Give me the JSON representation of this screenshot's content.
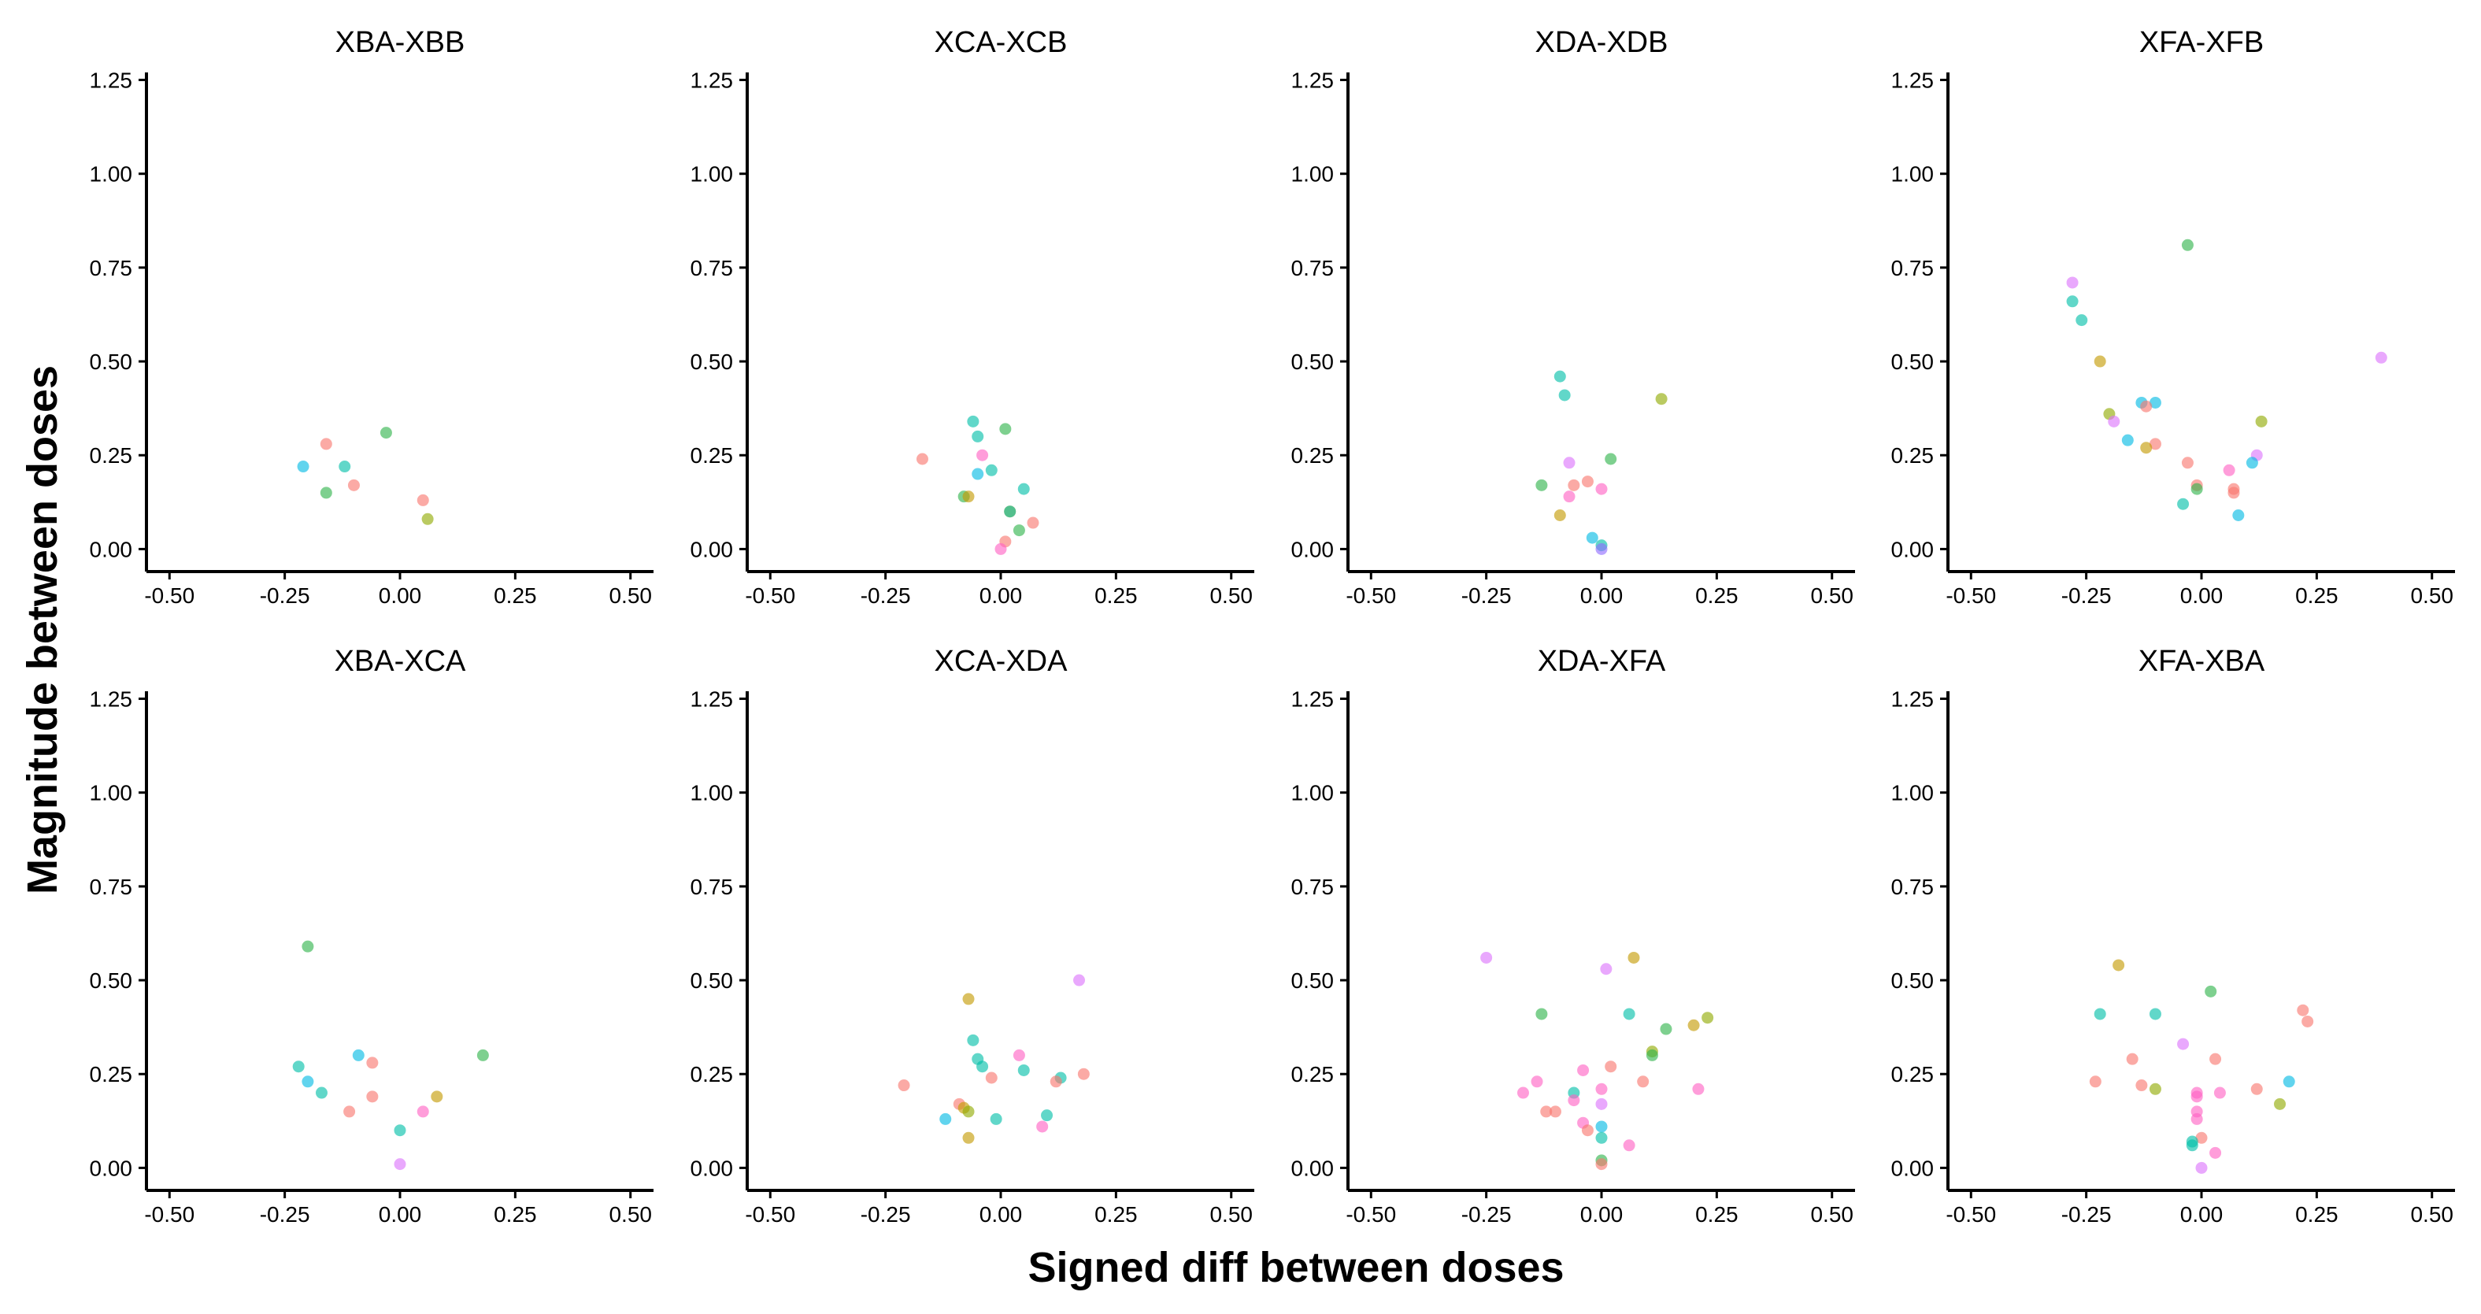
{
  "chart_data": {
    "type": "scatter",
    "xlabel": "Signed diff between doses",
    "ylabel": "Magnitude between doses",
    "xlim": [
      -0.55,
      0.55
    ],
    "ylim": [
      -0.06,
      1.27
    ],
    "x_ticks": [
      "-0.50",
      "-0.25",
      "0.00",
      "0.25",
      "0.50"
    ],
    "y_ticks": [
      "0.00",
      "0.25",
      "0.50",
      "0.75",
      "1.00",
      "1.25"
    ],
    "layout": "2 rows x 4 columns facets",
    "palette": {
      "salmon": "#F8766D",
      "mustard": "#C49A00",
      "olive": "#8FAA00",
      "green": "#2EB34A",
      "teal": "#00BFA8",
      "cyan": "#00B9E3",
      "blue": "#619CFF",
      "purple": "#8F6BFF",
      "violet": "#DB72FB",
      "pink": "#FF61C3"
    },
    "panels": [
      {
        "title": "XBA-XBB",
        "points": [
          {
            "x": -0.16,
            "y": 0.28,
            "c": "#F8766D"
          },
          {
            "x": -0.03,
            "y": 0.31,
            "c": "#2EB34A"
          },
          {
            "x": -0.21,
            "y": 0.22,
            "c": "#00B9E3"
          },
          {
            "x": -0.12,
            "y": 0.22,
            "c": "#00BFA8"
          },
          {
            "x": -0.1,
            "y": 0.17,
            "c": "#F8766D"
          },
          {
            "x": -0.16,
            "y": 0.15,
            "c": "#2EB34A"
          },
          {
            "x": 0.05,
            "y": 0.13,
            "c": "#F8766D"
          },
          {
            "x": 0.06,
            "y": 0.08,
            "c": "#8FAA00"
          }
        ]
      },
      {
        "title": "XCA-XCB",
        "points": [
          {
            "x": -0.06,
            "y": 0.34,
            "c": "#00BFA8"
          },
          {
            "x": 0.01,
            "y": 0.32,
            "c": "#2EB34A"
          },
          {
            "x": -0.05,
            "y": 0.3,
            "c": "#00BFA8"
          },
          {
            "x": -0.04,
            "y": 0.25,
            "c": "#FF61C3"
          },
          {
            "x": -0.17,
            "y": 0.24,
            "c": "#F8766D"
          },
          {
            "x": -0.02,
            "y": 0.21,
            "c": "#00BFA8"
          },
          {
            "x": -0.05,
            "y": 0.2,
            "c": "#00B9E3"
          },
          {
            "x": 0.05,
            "y": 0.16,
            "c": "#00BFA8"
          },
          {
            "x": -0.08,
            "y": 0.14,
            "c": "#2EB34A"
          },
          {
            "x": -0.07,
            "y": 0.14,
            "c": "#C49A00"
          },
          {
            "x": 0.02,
            "y": 0.1,
            "c": "#C49A00"
          },
          {
            "x": 0.02,
            "y": 0.1,
            "c": "#00BFA8"
          },
          {
            "x": 0.07,
            "y": 0.07,
            "c": "#F8766D"
          },
          {
            "x": 0.04,
            "y": 0.05,
            "c": "#2EB34A"
          },
          {
            "x": 0.01,
            "y": 0.02,
            "c": "#F8766D"
          },
          {
            "x": 0.0,
            "y": 0.0,
            "c": "#FF61C3"
          }
        ]
      },
      {
        "title": "XDA-XDB",
        "points": [
          {
            "x": -0.09,
            "y": 0.46,
            "c": "#00BFA8"
          },
          {
            "x": -0.08,
            "y": 0.41,
            "c": "#00BFA8"
          },
          {
            "x": 0.13,
            "y": 0.4,
            "c": "#8FAA00"
          },
          {
            "x": 0.02,
            "y": 0.24,
            "c": "#2EB34A"
          },
          {
            "x": -0.07,
            "y": 0.23,
            "c": "#DB72FB"
          },
          {
            "x": -0.03,
            "y": 0.18,
            "c": "#F8766D"
          },
          {
            "x": -0.06,
            "y": 0.17,
            "c": "#F8766D"
          },
          {
            "x": -0.13,
            "y": 0.17,
            "c": "#2EB34A"
          },
          {
            "x": 0.0,
            "y": 0.16,
            "c": "#FF61C3"
          },
          {
            "x": -0.07,
            "y": 0.14,
            "c": "#FF61C3"
          },
          {
            "x": -0.09,
            "y": 0.09,
            "c": "#C49A00"
          },
          {
            "x": -0.02,
            "y": 0.03,
            "c": "#00B9E3"
          },
          {
            "x": 0.0,
            "y": 0.01,
            "c": "#00BFA8"
          },
          {
            "x": 0.0,
            "y": 0.0,
            "c": "#8F6BFF"
          }
        ]
      },
      {
        "title": "XFA-XFB",
        "points": [
          {
            "x": -0.03,
            "y": 0.81,
            "c": "#2EB34A"
          },
          {
            "x": -0.28,
            "y": 0.71,
            "c": "#DB72FB"
          },
          {
            "x": -0.28,
            "y": 0.66,
            "c": "#00BFA8"
          },
          {
            "x": -0.26,
            "y": 0.61,
            "c": "#00BFA8"
          },
          {
            "x": 0.39,
            "y": 0.51,
            "c": "#DB72FB"
          },
          {
            "x": -0.22,
            "y": 0.5,
            "c": "#C49A00"
          },
          {
            "x": -0.13,
            "y": 0.39,
            "c": "#00B9E3"
          },
          {
            "x": -0.1,
            "y": 0.39,
            "c": "#00B9E3"
          },
          {
            "x": -0.12,
            "y": 0.38,
            "c": "#F8766D"
          },
          {
            "x": -0.2,
            "y": 0.36,
            "c": "#8FAA00"
          },
          {
            "x": -0.19,
            "y": 0.34,
            "c": "#DB72FB"
          },
          {
            "x": 0.13,
            "y": 0.34,
            "c": "#8FAA00"
          },
          {
            "x": -0.16,
            "y": 0.29,
            "c": "#00B9E3"
          },
          {
            "x": -0.1,
            "y": 0.28,
            "c": "#F8766D"
          },
          {
            "x": -0.12,
            "y": 0.27,
            "c": "#C49A00"
          },
          {
            "x": 0.12,
            "y": 0.25,
            "c": "#DB72FB"
          },
          {
            "x": 0.11,
            "y": 0.23,
            "c": "#00B9E3"
          },
          {
            "x": -0.03,
            "y": 0.23,
            "c": "#F8766D"
          },
          {
            "x": 0.06,
            "y": 0.21,
            "c": "#FF61C3"
          },
          {
            "x": -0.01,
            "y": 0.17,
            "c": "#F8766D"
          },
          {
            "x": -0.01,
            "y": 0.16,
            "c": "#2EB34A"
          },
          {
            "x": 0.07,
            "y": 0.16,
            "c": "#F8766D"
          },
          {
            "x": 0.07,
            "y": 0.15,
            "c": "#F8766D"
          },
          {
            "x": -0.04,
            "y": 0.12,
            "c": "#00BFA8"
          },
          {
            "x": 0.08,
            "y": 0.09,
            "c": "#00B9E3"
          }
        ]
      },
      {
        "title": "XBA-XCA",
        "points": [
          {
            "x": -0.2,
            "y": 0.59,
            "c": "#2EB34A"
          },
          {
            "x": -0.09,
            "y": 0.3,
            "c": "#00B9E3"
          },
          {
            "x": 0.18,
            "y": 0.3,
            "c": "#2EB34A"
          },
          {
            "x": -0.06,
            "y": 0.28,
            "c": "#F8766D"
          },
          {
            "x": -0.22,
            "y": 0.27,
            "c": "#00BFA8"
          },
          {
            "x": -0.2,
            "y": 0.23,
            "c": "#00B9E3"
          },
          {
            "x": -0.17,
            "y": 0.2,
            "c": "#00BFA8"
          },
          {
            "x": -0.06,
            "y": 0.19,
            "c": "#F8766D"
          },
          {
            "x": 0.08,
            "y": 0.19,
            "c": "#C49A00"
          },
          {
            "x": -0.11,
            "y": 0.15,
            "c": "#F8766D"
          },
          {
            "x": 0.05,
            "y": 0.15,
            "c": "#FF61C3"
          },
          {
            "x": 0.0,
            "y": 0.1,
            "c": "#00BFA8"
          },
          {
            "x": 0.0,
            "y": 0.01,
            "c": "#DB72FB"
          }
        ]
      },
      {
        "title": "XCA-XDA",
        "points": [
          {
            "x": 0.17,
            "y": 0.5,
            "c": "#DB72FB"
          },
          {
            "x": -0.07,
            "y": 0.45,
            "c": "#C49A00"
          },
          {
            "x": -0.06,
            "y": 0.34,
            "c": "#00BFA8"
          },
          {
            "x": -0.05,
            "y": 0.29,
            "c": "#00BFA8"
          },
          {
            "x": 0.04,
            "y": 0.3,
            "c": "#FF61C3"
          },
          {
            "x": -0.04,
            "y": 0.27,
            "c": "#00BFA8"
          },
          {
            "x": 0.05,
            "y": 0.26,
            "c": "#00BFA8"
          },
          {
            "x": 0.18,
            "y": 0.25,
            "c": "#F8766D"
          },
          {
            "x": 0.13,
            "y": 0.24,
            "c": "#00BFA8"
          },
          {
            "x": 0.12,
            "y": 0.23,
            "c": "#F8766D"
          },
          {
            "x": -0.02,
            "y": 0.24,
            "c": "#F8766D"
          },
          {
            "x": -0.21,
            "y": 0.22,
            "c": "#F8766D"
          },
          {
            "x": -0.09,
            "y": 0.17,
            "c": "#F8766D"
          },
          {
            "x": -0.08,
            "y": 0.16,
            "c": "#C49A00"
          },
          {
            "x": -0.07,
            "y": 0.15,
            "c": "#8FAA00"
          },
          {
            "x": -0.12,
            "y": 0.13,
            "c": "#00B9E3"
          },
          {
            "x": -0.01,
            "y": 0.13,
            "c": "#00BFA8"
          },
          {
            "x": 0.1,
            "y": 0.14,
            "c": "#00BFA8"
          },
          {
            "x": 0.09,
            "y": 0.11,
            "c": "#FF61C3"
          },
          {
            "x": -0.07,
            "y": 0.08,
            "c": "#C49A00"
          }
        ]
      },
      {
        "title": "XDA-XFA",
        "points": [
          {
            "x": -0.25,
            "y": 0.56,
            "c": "#DB72FB"
          },
          {
            "x": 0.07,
            "y": 0.56,
            "c": "#C49A00"
          },
          {
            "x": 0.01,
            "y": 0.53,
            "c": "#DB72FB"
          },
          {
            "x": -0.13,
            "y": 0.41,
            "c": "#2EB34A"
          },
          {
            "x": 0.06,
            "y": 0.41,
            "c": "#00BFA8"
          },
          {
            "x": 0.23,
            "y": 0.4,
            "c": "#8FAA00"
          },
          {
            "x": 0.2,
            "y": 0.38,
            "c": "#C49A00"
          },
          {
            "x": 0.14,
            "y": 0.37,
            "c": "#2EB34A"
          },
          {
            "x": 0.11,
            "y": 0.31,
            "c": "#8FAA00"
          },
          {
            "x": 0.11,
            "y": 0.3,
            "c": "#2EB34A"
          },
          {
            "x": 0.02,
            "y": 0.27,
            "c": "#F8766D"
          },
          {
            "x": -0.04,
            "y": 0.26,
            "c": "#FF61C3"
          },
          {
            "x": -0.14,
            "y": 0.23,
            "c": "#FF61C3"
          },
          {
            "x": 0.09,
            "y": 0.23,
            "c": "#F8766D"
          },
          {
            "x": 0.21,
            "y": 0.21,
            "c": "#FF61C3"
          },
          {
            "x": 0.0,
            "y": 0.21,
            "c": "#FF61C3"
          },
          {
            "x": -0.06,
            "y": 0.2,
            "c": "#00BFA8"
          },
          {
            "x": -0.17,
            "y": 0.2,
            "c": "#FF61C3"
          },
          {
            "x": -0.06,
            "y": 0.18,
            "c": "#FF61C3"
          },
          {
            "x": 0.0,
            "y": 0.17,
            "c": "#DB72FB"
          },
          {
            "x": -0.12,
            "y": 0.15,
            "c": "#F8766D"
          },
          {
            "x": -0.1,
            "y": 0.15,
            "c": "#F8766D"
          },
          {
            "x": -0.04,
            "y": 0.12,
            "c": "#FF61C3"
          },
          {
            "x": 0.0,
            "y": 0.11,
            "c": "#00B9E3"
          },
          {
            "x": -0.03,
            "y": 0.1,
            "c": "#F8766D"
          },
          {
            "x": 0.0,
            "y": 0.08,
            "c": "#00BFA8"
          },
          {
            "x": 0.06,
            "y": 0.06,
            "c": "#FF61C3"
          },
          {
            "x": 0.0,
            "y": 0.02,
            "c": "#2EB34A"
          },
          {
            "x": 0.0,
            "y": 0.01,
            "c": "#F8766D"
          }
        ]
      },
      {
        "title": "XFA-XBA",
        "points": [
          {
            "x": -0.18,
            "y": 0.54,
            "c": "#C49A00"
          },
          {
            "x": 0.02,
            "y": 0.47,
            "c": "#2EB34A"
          },
          {
            "x": 0.22,
            "y": 0.42,
            "c": "#F8766D"
          },
          {
            "x": -0.22,
            "y": 0.41,
            "c": "#00BFA8"
          },
          {
            "x": -0.1,
            "y": 0.41,
            "c": "#00BFA8"
          },
          {
            "x": 0.23,
            "y": 0.39,
            "c": "#F8766D"
          },
          {
            "x": -0.04,
            "y": 0.33,
            "c": "#DB72FB"
          },
          {
            "x": -0.15,
            "y": 0.29,
            "c": "#F8766D"
          },
          {
            "x": 0.03,
            "y": 0.29,
            "c": "#F8766D"
          },
          {
            "x": 0.19,
            "y": 0.23,
            "c": "#00B9E3"
          },
          {
            "x": -0.23,
            "y": 0.23,
            "c": "#F8766D"
          },
          {
            "x": -0.13,
            "y": 0.22,
            "c": "#F8766D"
          },
          {
            "x": -0.1,
            "y": 0.21,
            "c": "#8FAA00"
          },
          {
            "x": 0.12,
            "y": 0.21,
            "c": "#F8766D"
          },
          {
            "x": 0.04,
            "y": 0.2,
            "c": "#FF61C3"
          },
          {
            "x": -0.01,
            "y": 0.2,
            "c": "#FF61C3"
          },
          {
            "x": -0.01,
            "y": 0.19,
            "c": "#FF61C3"
          },
          {
            "x": 0.17,
            "y": 0.17,
            "c": "#8FAA00"
          },
          {
            "x": -0.01,
            "y": 0.15,
            "c": "#FF61C3"
          },
          {
            "x": -0.01,
            "y": 0.13,
            "c": "#FF61C3"
          },
          {
            "x": 0.0,
            "y": 0.08,
            "c": "#F8766D"
          },
          {
            "x": -0.02,
            "y": 0.07,
            "c": "#00BFA8"
          },
          {
            "x": -0.02,
            "y": 0.06,
            "c": "#00BFA8"
          },
          {
            "x": 0.03,
            "y": 0.04,
            "c": "#FF61C3"
          },
          {
            "x": 0.0,
            "y": 0.0,
            "c": "#DB72FB"
          }
        ]
      }
    ]
  }
}
